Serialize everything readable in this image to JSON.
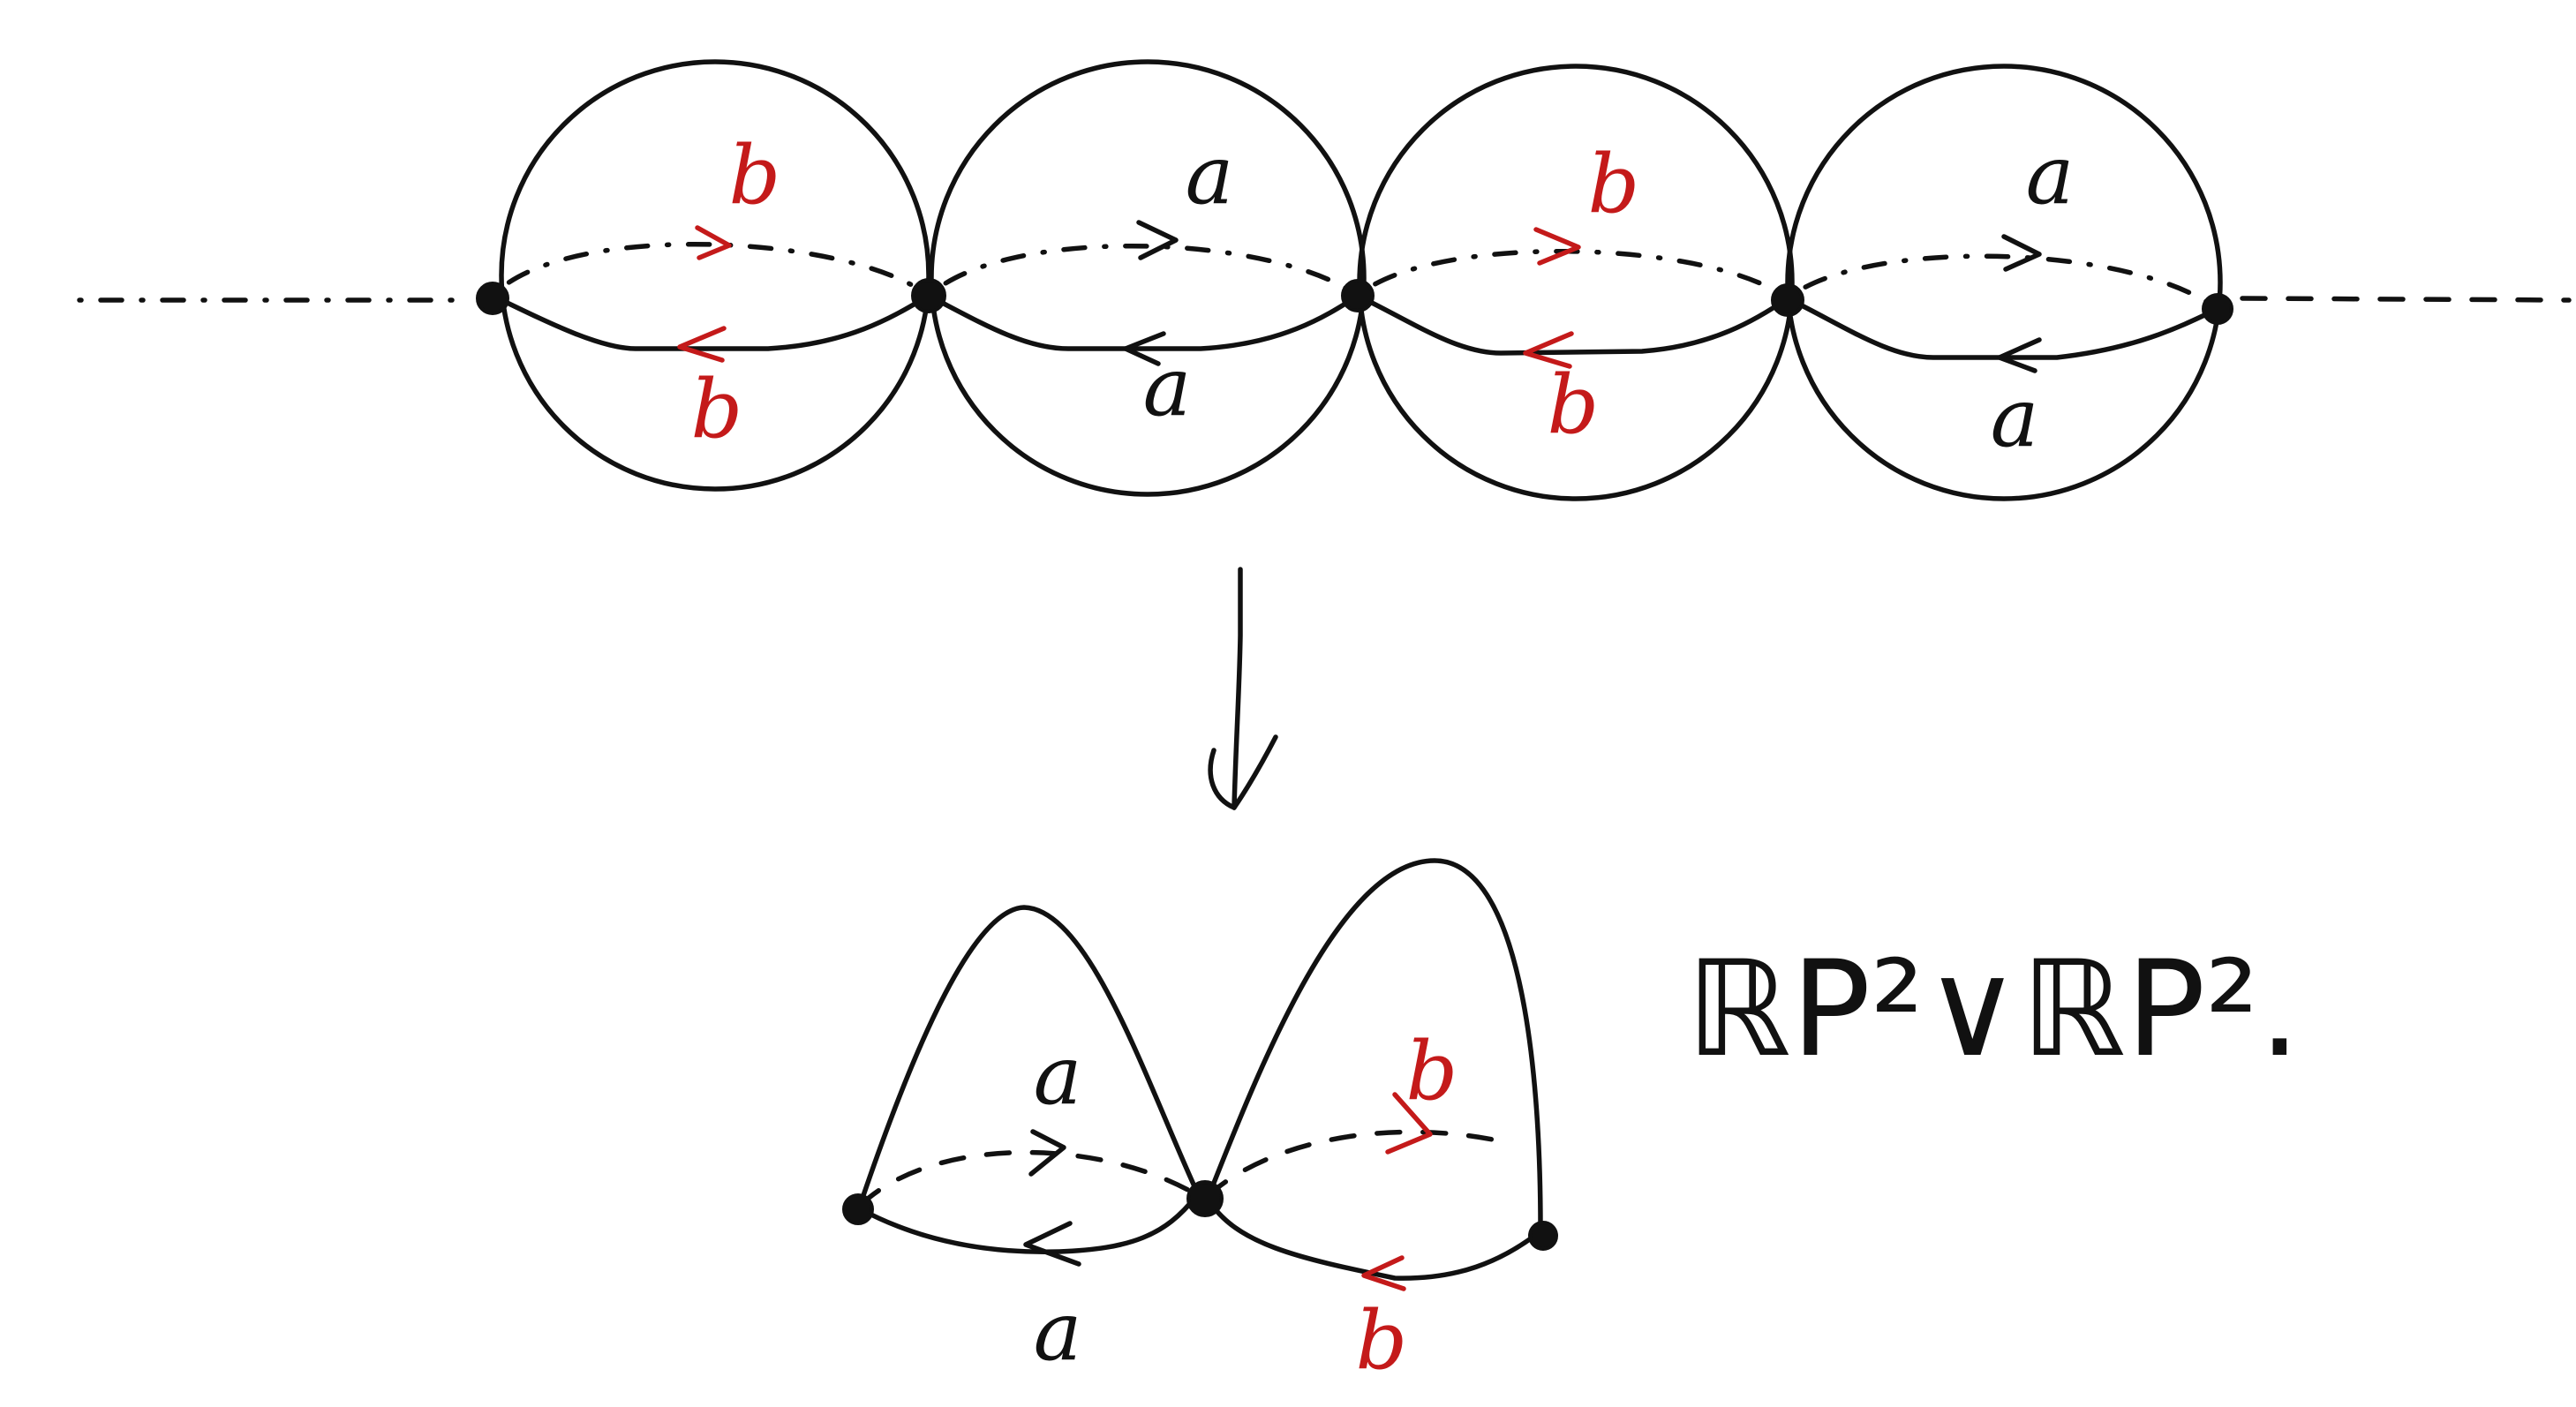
{
  "colors": {
    "ink": "#111111",
    "accent_red": "#c41a1a"
  },
  "top_chain": {
    "spheres": [
      {
        "upper_label": "b",
        "lower_label": "b",
        "label_color": "#c41a1a"
      },
      {
        "upper_label": "a",
        "lower_label": "a",
        "label_color": "#111111"
      },
      {
        "upper_label": "b",
        "lower_label": "b",
        "label_color": "#c41a1a"
      },
      {
        "upper_label": "a",
        "lower_label": "a",
        "label_color": "#111111"
      }
    ]
  },
  "quotient": {
    "left_upper_label": "a",
    "left_lower_label": "a",
    "right_upper_label": "b",
    "right_lower_label": "b",
    "space_label": "ℝP²∨ℝP²."
  }
}
